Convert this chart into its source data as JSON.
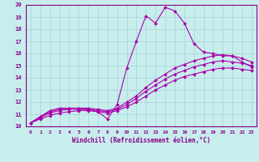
{
  "xlabel": "Windchill (Refroidissement éolien,°C)",
  "bg_color": "#c8eded",
  "grid_color": "#a8d8d8",
  "line_color": "#aa00aa",
  "spine_color": "#880088",
  "xlim": [
    -0.5,
    23.5
  ],
  "ylim": [
    10,
    20
  ],
  "xticks": [
    0,
    1,
    2,
    3,
    4,
    5,
    6,
    7,
    8,
    9,
    10,
    11,
    12,
    13,
    14,
    15,
    16,
    17,
    18,
    19,
    20,
    21,
    22,
    23
  ],
  "yticks": [
    10,
    11,
    12,
    13,
    14,
    15,
    16,
    17,
    18,
    19,
    20
  ],
  "series": [
    {
      "x": [
        0,
        1,
        2,
        3,
        4,
        5,
        6,
        7,
        8,
        9,
        10,
        11,
        12,
        13,
        14,
        15,
        16,
        17,
        18,
        19,
        20,
        21,
        22,
        23
      ],
      "y": [
        10.3,
        10.8,
        11.3,
        11.5,
        11.5,
        11.5,
        11.4,
        11.2,
        10.6,
        11.8,
        14.8,
        17.0,
        19.1,
        18.5,
        19.8,
        19.5,
        18.5,
        16.8,
        16.1,
        16.0,
        15.8,
        15.8,
        15.3,
        14.9
      ]
    },
    {
      "x": [
        0,
        1,
        2,
        3,
        4,
        5,
        6,
        7,
        8,
        9,
        10,
        11,
        12,
        13,
        14,
        15,
        16,
        17,
        18,
        19,
        20,
        21,
        22,
        23
      ],
      "y": [
        10.3,
        10.8,
        11.2,
        11.4,
        11.5,
        11.5,
        11.5,
        11.4,
        11.3,
        11.5,
        12.0,
        12.5,
        13.2,
        13.8,
        14.3,
        14.8,
        15.1,
        15.4,
        15.6,
        15.8,
        15.9,
        15.8,
        15.6,
        15.3
      ]
    },
    {
      "x": [
        0,
        1,
        2,
        3,
        4,
        5,
        6,
        7,
        8,
        9,
        10,
        11,
        12,
        13,
        14,
        15,
        16,
        17,
        18,
        19,
        20,
        21,
        22,
        23
      ],
      "y": [
        10.3,
        10.7,
        11.1,
        11.3,
        11.4,
        11.4,
        11.4,
        11.3,
        11.2,
        11.4,
        11.8,
        12.3,
        12.9,
        13.4,
        13.9,
        14.3,
        14.6,
        14.9,
        15.1,
        15.3,
        15.4,
        15.3,
        15.2,
        15.0
      ]
    },
    {
      "x": [
        0,
        1,
        2,
        3,
        4,
        5,
        6,
        7,
        8,
        9,
        10,
        11,
        12,
        13,
        14,
        15,
        16,
        17,
        18,
        19,
        20,
        21,
        22,
        23
      ],
      "y": [
        10.3,
        10.6,
        10.9,
        11.1,
        11.2,
        11.3,
        11.3,
        11.2,
        11.1,
        11.3,
        11.6,
        12.0,
        12.5,
        13.0,
        13.4,
        13.8,
        14.1,
        14.3,
        14.5,
        14.7,
        14.8,
        14.8,
        14.7,
        14.6
      ]
    }
  ]
}
